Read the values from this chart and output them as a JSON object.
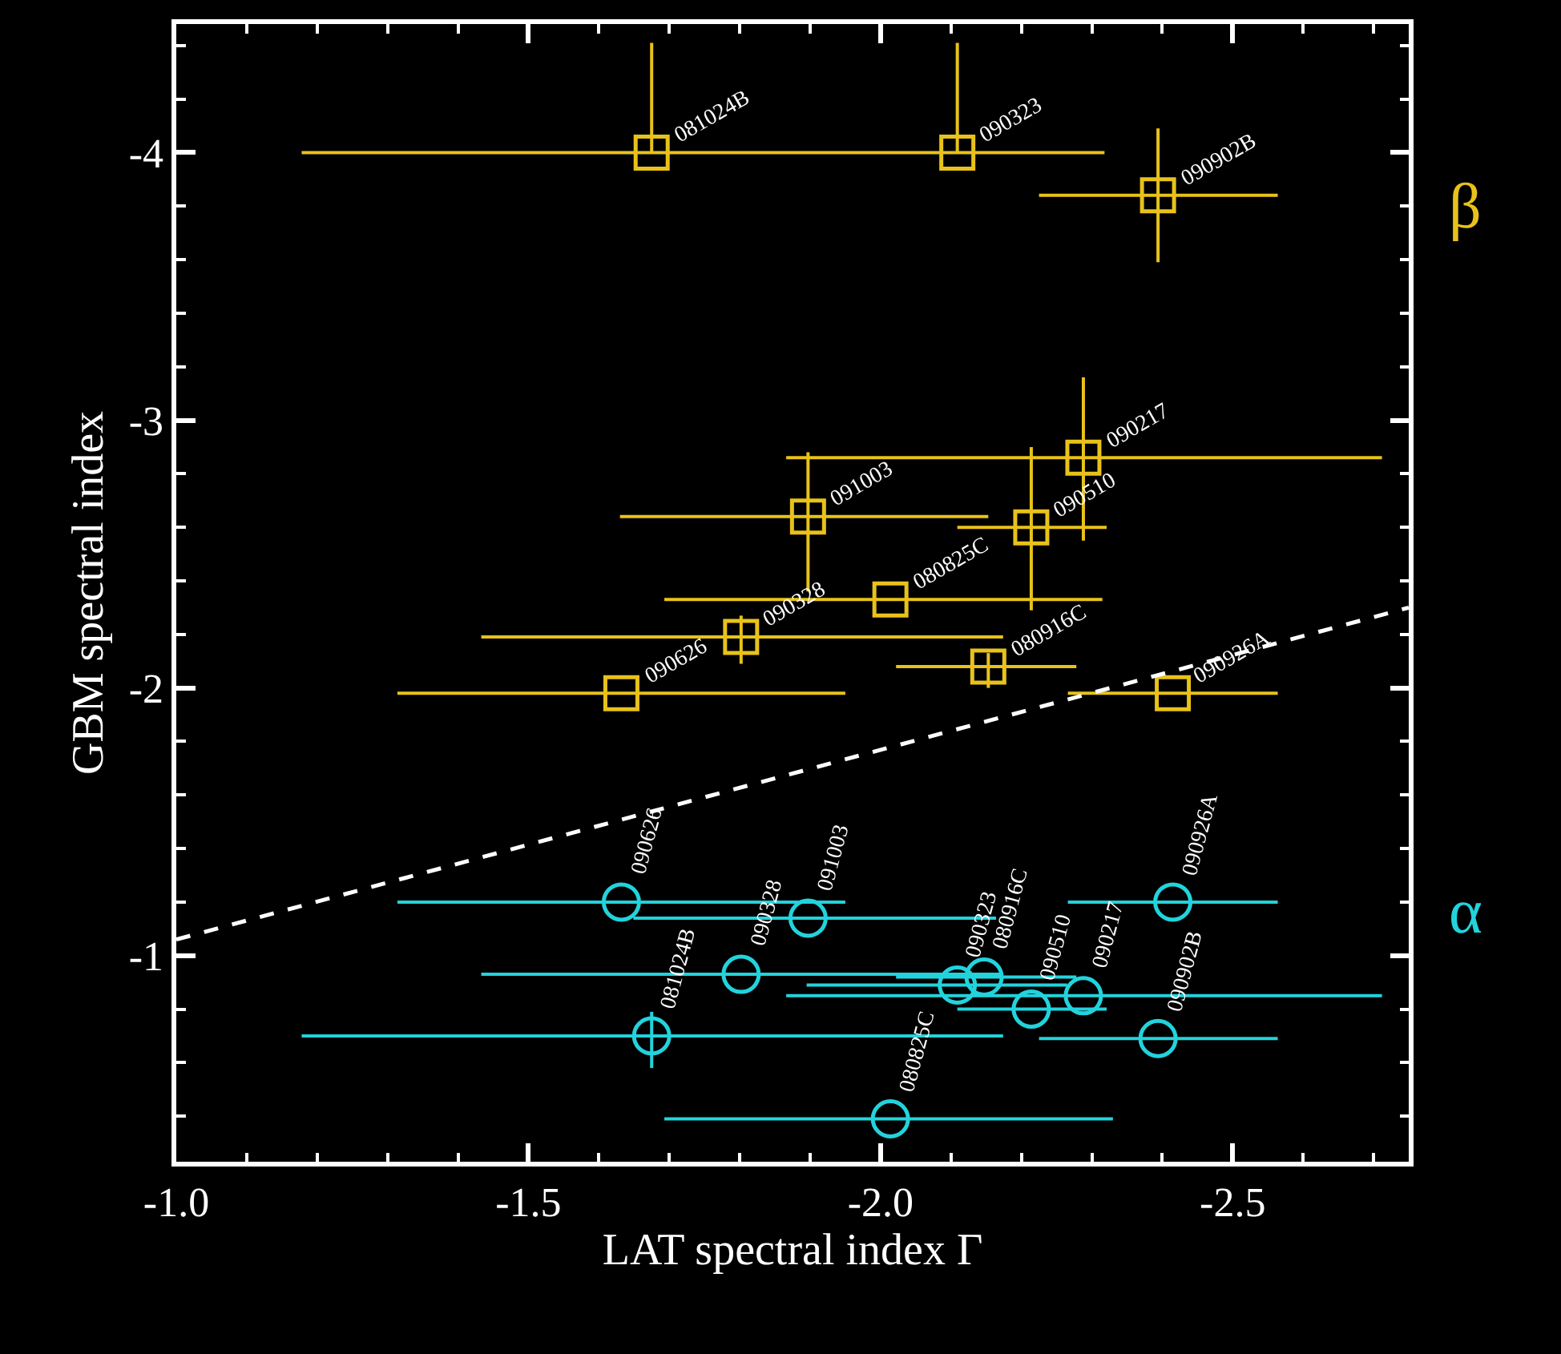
{
  "chart_data": {
    "type": "scatter",
    "xlabel": "LAT spectral index Γ",
    "ylabel": "GBM spectral index",
    "xlim": [
      -1.0,
      -2.75
    ],
    "ylim": [
      -0.23,
      -4.48
    ],
    "xticks": [
      {
        "value": -1.0,
        "label": "-1.0"
      },
      {
        "value": -1.5,
        "label": "-1.5"
      },
      {
        "value": -2.0,
        "label": "-2.0"
      },
      {
        "value": -2.5,
        "label": "-2.5"
      }
    ],
    "yticks": [
      -4,
      -3,
      -2,
      -1
    ],
    "grid": false,
    "series": [
      {
        "name": "β",
        "color": "#e8c21a",
        "marker": "square",
        "x": [
          -1.675,
          -2.109,
          -2.394,
          -2.288,
          -1.897,
          -2.214,
          -2.014,
          -1.802,
          -1.632,
          -2.153,
          -2.415
        ],
        "values": [
          -4.0,
          -4.0,
          -3.84,
          -2.86,
          -2.64,
          -2.6,
          -2.33,
          -2.19,
          -1.98,
          -2.08,
          -1.98
        ],
        "errors": [
          [
            -4.41,
            -4.0
          ],
          [
            -4.41,
            -4.0
          ],
          [
            -4.09,
            -3.59
          ],
          [
            -3.16,
            -2.55
          ],
          [
            -2.88,
            -2.36
          ],
          [
            -2.9,
            -2.29
          ],
          null,
          [
            -2.27,
            -2.09
          ],
          null,
          [
            -2.13,
            -2.0
          ],
          null
        ],
        "xerrors": [
          [
            -1.178,
            -2.318
          ],
          null,
          [
            -2.225,
            -2.564
          ],
          [
            -1.866,
            -2.712
          ],
          [
            -1.63,
            -2.153
          ],
          [
            -2.109,
            -2.321
          ],
          [
            -1.693,
            -2.315
          ],
          [
            -1.433,
            -2.174
          ],
          [
            -1.314,
            -1.95
          ],
          [
            -2.022,
            -2.278
          ],
          [
            -2.266,
            -2.564
          ]
        ]
      },
      {
        "name": "α",
        "color": "#22d3dc",
        "marker": "circle",
        "x": [
          -1.632,
          -1.897,
          -1.802,
          -1.675,
          -2.014,
          -2.109,
          -2.147,
          -2.214,
          -2.288,
          -2.394,
          -2.415
        ],
        "values": [
          -1.2,
          -1.14,
          -0.93,
          -0.7,
          -0.39,
          -0.89,
          -0.92,
          -0.8,
          -0.85,
          -0.69,
          -1.2
        ],
        "errors": [
          null,
          null,
          null,
          [
            -0.79,
            -0.58
          ],
          null,
          null,
          null,
          null,
          null,
          null,
          null
        ],
        "xerrors": [
          [
            -1.314,
            -1.95
          ],
          [
            -1.649,
            -2.164
          ],
          [
            -1.433,
            -2.174
          ],
          [
            -1.178,
            -2.174
          ],
          [
            -1.693,
            -2.33
          ],
          [
            -1.895,
            -2.265
          ],
          [
            -2.022,
            -2.278
          ],
          [
            -2.109,
            -2.321
          ],
          [
            -1.866,
            -2.712
          ],
          [
            -2.225,
            -2.564
          ],
          [
            -2.266,
            -2.564
          ]
        ]
      },
      {
        "type": "line",
        "line_style": "dashed",
        "color": "#ffffff",
        "x": [
          -1.0,
          -2.75
        ],
        "values": [
          -1.06,
          -2.3
        ]
      }
    ],
    "annotations": [
      {
        "text": "081024B",
        "x": -1.675,
        "y": -4.0
      },
      {
        "text": "090323",
        "x": -2.109,
        "y": -4.0
      },
      {
        "text": "090902B",
        "x": -2.394,
        "y": -3.84
      },
      {
        "text": "090217",
        "x": -2.288,
        "y": -2.86
      },
      {
        "text": "091003",
        "x": -1.897,
        "y": -2.64
      },
      {
        "text": "090510",
        "x": -2.214,
        "y": -2.6
      },
      {
        "text": "080825C",
        "x": -2.014,
        "y": -2.33
      },
      {
        "text": "090328",
        "x": -1.802,
        "y": -2.19
      },
      {
        "text": "090626",
        "x": -1.632,
        "y": -1.98
      },
      {
        "text": "080916C",
        "x": -2.153,
        "y": -2.08
      },
      {
        "text": "090926A",
        "x": -2.415,
        "y": -1.98
      },
      {
        "text": "090626",
        "x": -1.632,
        "y": -1.2
      },
      {
        "text": "091003",
        "x": -1.897,
        "y": -1.14
      },
      {
        "text": "090328",
        "x": -1.802,
        "y": -0.93
      },
      {
        "text": "081024B",
        "x": -1.675,
        "y": -0.7
      },
      {
        "text": "080825C",
        "x": -2.014,
        "y": -0.39
      },
      {
        "text": "090323",
        "x": -2.109,
        "y": -0.89
      },
      {
        "text": "080916C",
        "x": -2.147,
        "y": -0.92
      },
      {
        "text": "090510",
        "x": -2.214,
        "y": -0.8
      },
      {
        "text": "090217",
        "x": -2.288,
        "y": -0.85
      },
      {
        "text": "090902B",
        "x": -2.394,
        "y": -0.69
      },
      {
        "text": "090926A",
        "x": -2.415,
        "y": -1.2
      }
    ]
  }
}
